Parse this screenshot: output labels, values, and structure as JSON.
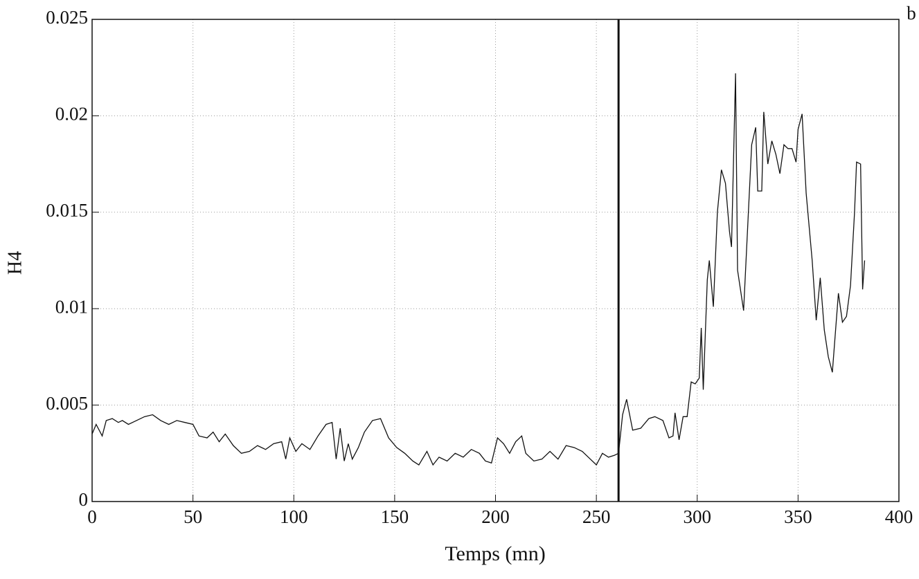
{
  "chart_data": {
    "type": "line",
    "panel_label": "b",
    "xlabel": "Temps (mn)",
    "ylabel": "H4",
    "x": [
      0,
      2,
      5,
      7,
      10,
      13,
      15,
      18,
      22,
      26,
      30,
      34,
      38,
      42,
      46,
      50,
      53,
      57,
      60,
      63,
      66,
      70,
      74,
      78,
      82,
      86,
      90,
      94,
      96,
      98,
      101,
      104,
      108,
      112,
      116,
      119,
      121,
      123,
      125,
      127,
      129,
      132,
      135,
      139,
      143,
      147,
      151,
      155,
      159,
      162,
      166,
      169,
      172,
      176,
      180,
      184,
      188,
      192,
      195,
      198,
      201,
      204,
      207,
      210,
      213,
      215,
      219,
      223,
      227,
      231,
      235,
      239,
      243,
      247,
      250,
      253,
      256,
      259,
      261,
      263,
      265,
      268,
      272,
      276,
      279,
      283,
      286,
      288,
      289,
      291,
      293,
      295,
      297,
      299,
      301,
      302,
      303,
      305,
      306,
      308,
      310,
      312,
      314,
      316,
      317,
      319,
      320,
      323,
      327,
      329,
      330,
      332,
      333,
      335,
      337,
      339,
      341,
      343,
      345,
      347,
      349,
      350,
      352,
      354,
      357,
      359,
      361,
      363,
      365,
      367,
      370,
      372,
      374,
      376,
      378,
      379,
      381,
      382,
      383
    ],
    "series": [
      {
        "name": "H4",
        "color": "#111111",
        "values": [
          0.0035,
          0.004,
          0.0034,
          0.0042,
          0.0043,
          0.0041,
          0.0042,
          0.004,
          0.0042,
          0.0044,
          0.0045,
          0.0042,
          0.004,
          0.0042,
          0.0041,
          0.004,
          0.0034,
          0.0033,
          0.0036,
          0.0031,
          0.0035,
          0.0029,
          0.0025,
          0.0026,
          0.0029,
          0.0027,
          0.003,
          0.0031,
          0.0022,
          0.0033,
          0.0026,
          0.003,
          0.0027,
          0.0034,
          0.004,
          0.0041,
          0.0022,
          0.0038,
          0.0021,
          0.003,
          0.0022,
          0.0028,
          0.0036,
          0.0042,
          0.0043,
          0.0033,
          0.0028,
          0.0025,
          0.0021,
          0.0019,
          0.0026,
          0.0019,
          0.0023,
          0.0021,
          0.0025,
          0.0023,
          0.0027,
          0.0025,
          0.0021,
          0.002,
          0.0033,
          0.003,
          0.0025,
          0.0031,
          0.0034,
          0.0025,
          0.0021,
          0.0022,
          0.0026,
          0.0022,
          0.0029,
          0.0028,
          0.0026,
          0.0022,
          0.0019,
          0.0025,
          0.0023,
          0.0024,
          0.0025,
          0.0045,
          0.0053,
          0.0037,
          0.0038,
          0.0043,
          0.0044,
          0.0042,
          0.0033,
          0.0034,
          0.0046,
          0.0032,
          0.0044,
          0.0044,
          0.0062,
          0.0061,
          0.0064,
          0.009,
          0.0058,
          0.0115,
          0.0125,
          0.0101,
          0.015,
          0.0172,
          0.0165,
          0.014,
          0.0132,
          0.0222,
          0.012,
          0.0099,
          0.0185,
          0.0194,
          0.0161,
          0.0161,
          0.0202,
          0.0175,
          0.0187,
          0.018,
          0.017,
          0.0185,
          0.0183,
          0.0183,
          0.0176,
          0.0193,
          0.0201,
          0.016,
          0.0125,
          0.0094,
          0.0116,
          0.0089,
          0.0075,
          0.0067,
          0.0108,
          0.0093,
          0.0096,
          0.0112,
          0.015,
          0.0176,
          0.0175,
          0.011,
          0.0125
        ]
      }
    ],
    "vline": 261,
    "xlim": [
      0,
      400
    ],
    "xticks": [
      0,
      50,
      100,
      150,
      200,
      250,
      300,
      350,
      400
    ],
    "ylim": [
      0,
      0.025
    ],
    "yticks": [
      0,
      0.005,
      0.01,
      0.015,
      0.02,
      0.025
    ],
    "grid": true
  }
}
